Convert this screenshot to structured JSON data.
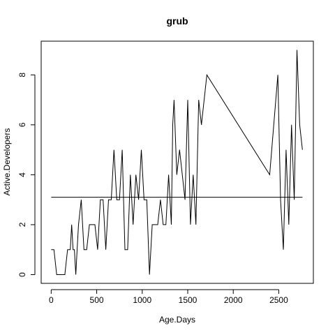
{
  "chart_data": {
    "type": "line",
    "title": "grub",
    "xlabel": "Age.Days",
    "ylabel": "Active.Developers",
    "xlim": [
      -110,
      2880
    ],
    "ylim": [
      -0.35,
      9.35
    ],
    "x_ticks": [
      0,
      500,
      1000,
      1500,
      2000,
      2500
    ],
    "y_ticks": [
      0,
      2,
      4,
      6,
      8
    ],
    "grid": false,
    "series": [
      {
        "x": [
          0,
          30,
          60,
          90,
          120,
          150,
          180,
          210,
          225,
          240,
          255,
          270,
          285,
          300,
          330,
          360,
          390,
          420,
          450,
          480,
          510,
          540,
          555,
          570,
          600,
          630,
          660,
          690,
          720,
          750,
          780,
          810,
          840,
          870,
          900,
          930,
          960,
          990,
          1020,
          1050,
          1080,
          1110,
          1140,
          1170,
          1200,
          1230,
          1260,
          1290,
          1320,
          1335,
          1350,
          1380,
          1410,
          1440,
          1470,
          1500,
          1530,
          1560,
          1590,
          1620,
          1650,
          1680,
          1710,
          2400,
          2490,
          2520,
          2550,
          2580,
          2610,
          2640,
          2670,
          2700,
          2730,
          2760
        ],
        "y": [
          1,
          1,
          0,
          0,
          0,
          0,
          1,
          1,
          2,
          1,
          1,
          0,
          1,
          2,
          3,
          1,
          1,
          2,
          2,
          2,
          1,
          3,
          3,
          3,
          1,
          3,
          3,
          5,
          3,
          3,
          5,
          1,
          1,
          4,
          2,
          4,
          3,
          5,
          3,
          3,
          0,
          2,
          2,
          2,
          3,
          2,
          2,
          4,
          2,
          6,
          7,
          4,
          5,
          4,
          3,
          7,
          2,
          4,
          2,
          7,
          6,
          7,
          8,
          4,
          8,
          3,
          1,
          5,
          2,
          6,
          3,
          9,
          6,
          5
        ]
      }
    ],
    "reference_line": {
      "y": 3.1,
      "x_from": 0,
      "x_to": 2760
    }
  }
}
